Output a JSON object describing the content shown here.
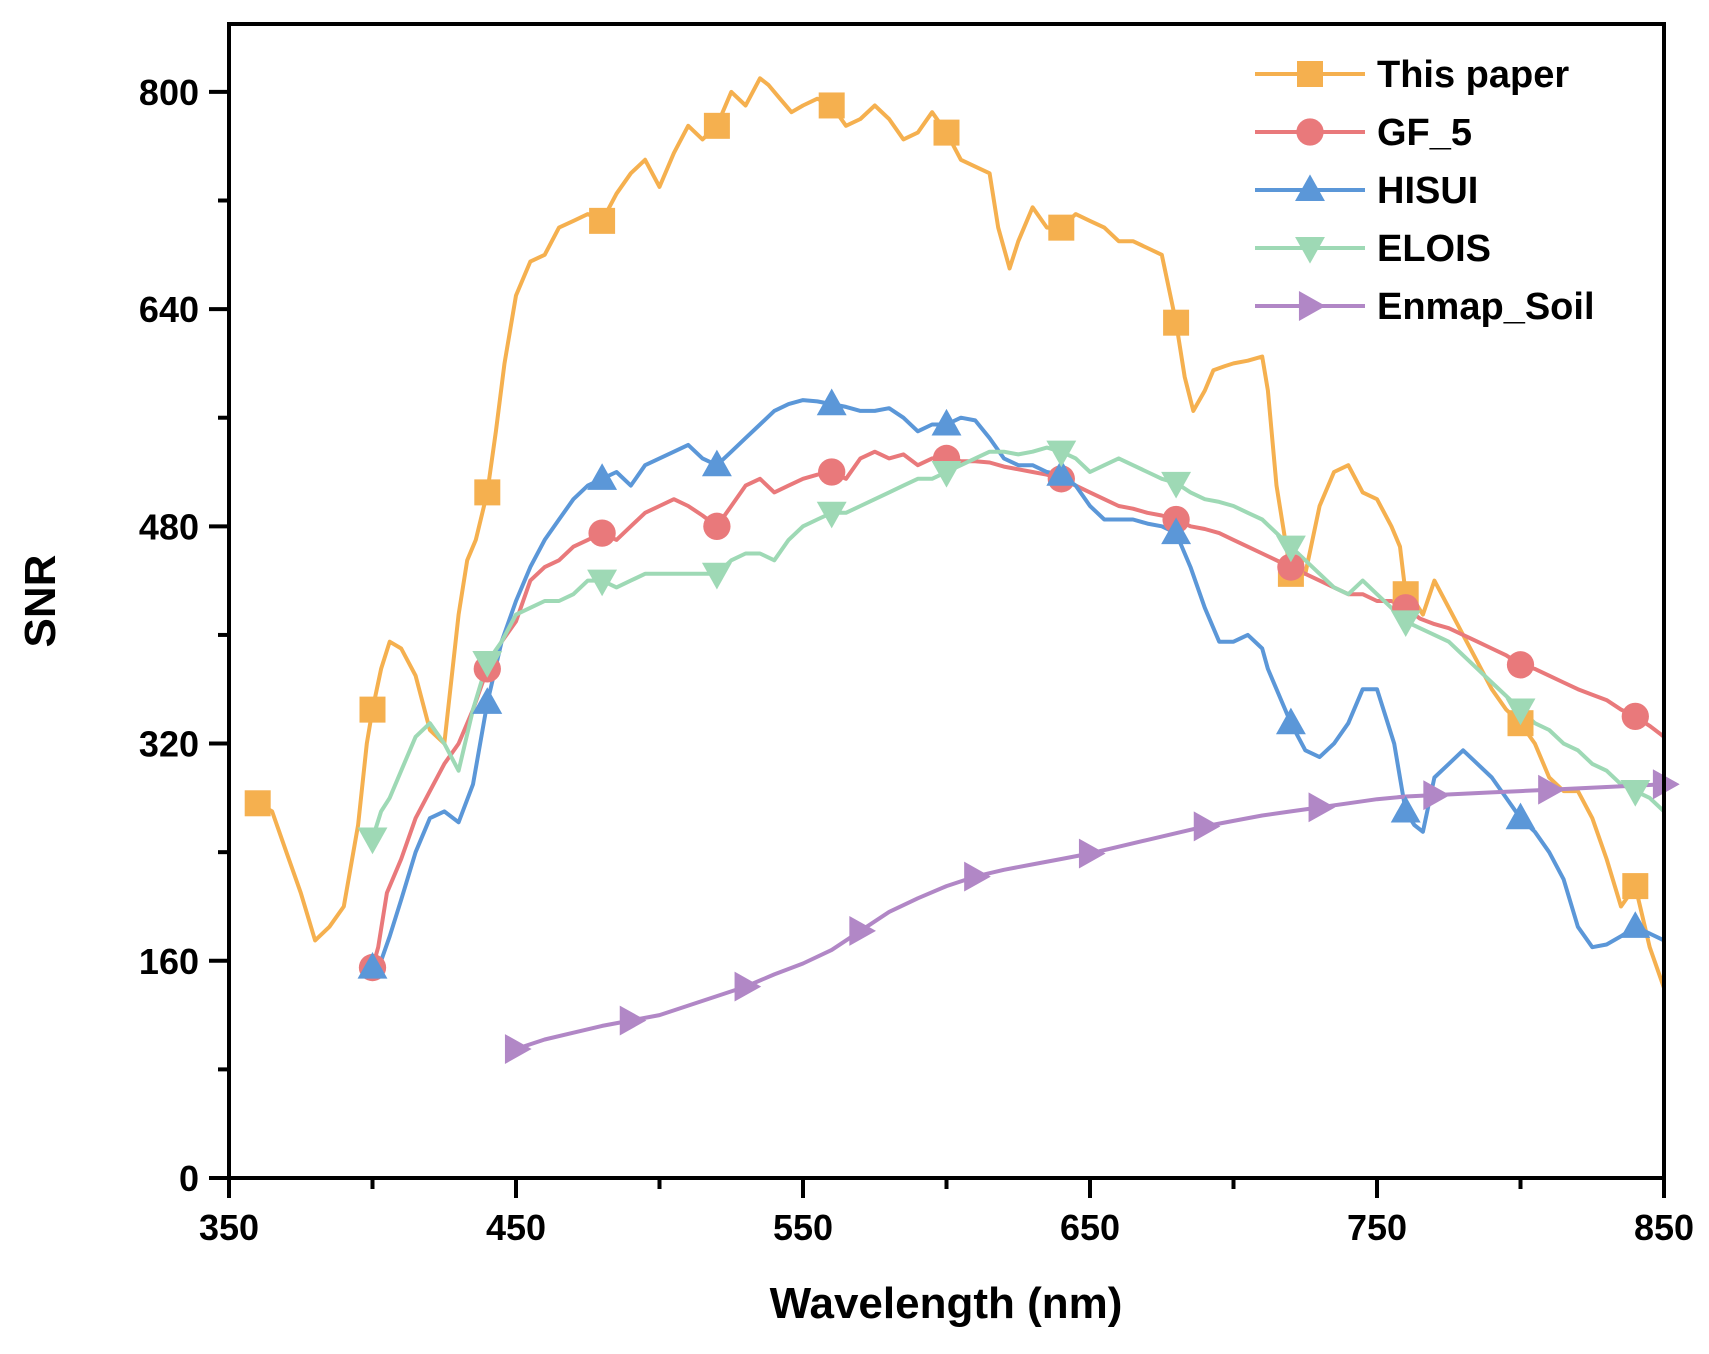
{
  "chart_data": {
    "type": "line",
    "title": "",
    "xlabel": "Wavelength (nm)",
    "ylabel": "SNR",
    "xlim": [
      350,
      850
    ],
    "ylim": [
      0,
      850
    ],
    "xticks": [
      350,
      450,
      550,
      650,
      750,
      850
    ],
    "xticks_minor": [
      400,
      500,
      600,
      700,
      800
    ],
    "yticks": [
      0,
      160,
      320,
      480,
      640,
      800
    ],
    "grid": false,
    "legend_position": "top-right",
    "series": [
      {
        "name": "This paper",
        "color": "#f5b04f",
        "marker": "square",
        "x": [
          360,
          365,
          370,
          375,
          380,
          385,
          390,
          395,
          398,
          400,
          403,
          406,
          410,
          415,
          420,
          425,
          430,
          433,
          436,
          440,
          443,
          446,
          450,
          455,
          460,
          465,
          470,
          475,
          480,
          485,
          490,
          495,
          500,
          505,
          510,
          515,
          520,
          525,
          530,
          535,
          538,
          542,
          546,
          550,
          555,
          560,
          565,
          570,
          575,
          580,
          585,
          590,
          595,
          600,
          605,
          610,
          615,
          618,
          622,
          625,
          630,
          635,
          640,
          645,
          650,
          655,
          660,
          665,
          670,
          675,
          680,
          683,
          686,
          690,
          693,
          697,
          700,
          705,
          710,
          712,
          715,
          718,
          720,
          725,
          730,
          735,
          740,
          745,
          750,
          755,
          758,
          760,
          763,
          766,
          770,
          775,
          780,
          785,
          790,
          795,
          800,
          805,
          810,
          815,
          820,
          825,
          830,
          835,
          840,
          845,
          850
        ],
        "y": [
          276,
          270,
          240,
          210,
          175,
          185,
          200,
          260,
          320,
          345,
          375,
          395,
          390,
          370,
          330,
          320,
          415,
          455,
          470,
          505,
          550,
          600,
          650,
          675,
          680,
          700,
          705,
          710,
          705,
          725,
          740,
          750,
          730,
          755,
          775,
          765,
          775,
          800,
          790,
          810,
          805,
          795,
          785,
          790,
          795,
          790,
          775,
          780,
          790,
          780,
          765,
          770,
          785,
          770,
          750,
          745,
          740,
          700,
          670,
          690,
          715,
          700,
          700,
          710,
          705,
          700,
          690,
          690,
          685,
          680,
          630,
          590,
          565,
          580,
          595,
          598,
          600,
          602,
          605,
          580,
          510,
          470,
          445,
          445,
          495,
          520,
          525,
          505,
          500,
          480,
          465,
          430,
          425,
          415,
          440,
          420,
          400,
          380,
          360,
          345,
          335,
          320,
          295,
          285,
          285,
          265,
          235,
          200,
          215,
          170,
          140
        ]
      },
      {
        "name": "GF_5",
        "color": "#e9797b",
        "marker": "circle",
        "x": [
          400,
          402,
          405,
          410,
          415,
          420,
          425,
          430,
          435,
          440,
          445,
          450,
          455,
          460,
          465,
          470,
          475,
          480,
          485,
          490,
          495,
          500,
          505,
          510,
          515,
          520,
          525,
          530,
          535,
          540,
          545,
          550,
          555,
          560,
          565,
          570,
          575,
          580,
          585,
          590,
          595,
          600,
          605,
          610,
          615,
          620,
          625,
          630,
          635,
          640,
          645,
          650,
          655,
          660,
          665,
          670,
          675,
          680,
          685,
          690,
          695,
          700,
          705,
          710,
          715,
          720,
          725,
          730,
          735,
          740,
          745,
          750,
          755,
          760,
          765,
          770,
          775,
          780,
          785,
          790,
          795,
          800,
          805,
          810,
          815,
          820,
          825,
          830,
          835,
          840,
          845,
          850
        ],
        "y": [
          155,
          170,
          210,
          235,
          265,
          285,
          305,
          320,
          345,
          375,
          395,
          410,
          440,
          450,
          455,
          465,
          470,
          475,
          470,
          480,
          490,
          495,
          500,
          495,
          488,
          480,
          495,
          510,
          515,
          505,
          510,
          515,
          518,
          520,
          515,
          530,
          535,
          530,
          533,
          525,
          530,
          530,
          528,
          528,
          527,
          524,
          522,
          520,
          518,
          515,
          510,
          505,
          500,
          495,
          493,
          490,
          488,
          485,
          480,
          478,
          475,
          470,
          465,
          460,
          455,
          450,
          445,
          440,
          435,
          430,
          430,
          425,
          425,
          420,
          412,
          408,
          405,
          400,
          395,
          390,
          385,
          378,
          375,
          370,
          365,
          360,
          356,
          352,
          345,
          340,
          333,
          325
        ]
      },
      {
        "name": "HISUI",
        "color": "#5b97d8",
        "marker": "triangle-up",
        "x": [
          400,
          403,
          406,
          410,
          415,
          420,
          425,
          430,
          435,
          440,
          445,
          450,
          455,
          460,
          465,
          470,
          475,
          480,
          485,
          490,
          495,
          500,
          505,
          510,
          515,
          520,
          525,
          530,
          535,
          540,
          545,
          550,
          555,
          560,
          565,
          570,
          575,
          580,
          585,
          590,
          595,
          600,
          605,
          610,
          615,
          620,
          625,
          630,
          635,
          640,
          645,
          650,
          655,
          660,
          665,
          670,
          675,
          680,
          685,
          690,
          695,
          700,
          705,
          710,
          712,
          715,
          718,
          720,
          725,
          730,
          735,
          740,
          745,
          750,
          753,
          756,
          760,
          763,
          766,
          770,
          775,
          780,
          785,
          790,
          795,
          800,
          805,
          810,
          815,
          820,
          825,
          830,
          835,
          840,
          845,
          850
        ],
        "y": [
          155,
          160,
          178,
          205,
          240,
          265,
          270,
          262,
          290,
          350,
          395,
          425,
          450,
          470,
          485,
          500,
          510,
          515,
          520,
          510,
          525,
          530,
          535,
          540,
          530,
          525,
          535,
          545,
          555,
          565,
          570,
          573,
          572,
          570,
          568,
          565,
          565,
          567,
          560,
          550,
          555,
          555,
          560,
          558,
          545,
          530,
          525,
          525,
          520,
          518,
          510,
          495,
          485,
          485,
          485,
          482,
          480,
          475,
          450,
          420,
          395,
          395,
          400,
          390,
          375,
          360,
          345,
          335,
          315,
          310,
          320,
          335,
          360,
          360,
          340,
          320,
          270,
          260,
          255,
          295,
          305,
          315,
          305,
          295,
          280,
          265,
          255,
          240,
          220,
          185,
          170,
          172,
          178,
          185,
          180,
          175
        ]
      },
      {
        "name": "ELOIS",
        "color": "#9ed9b5",
        "marker": "triangle-down",
        "x": [
          400,
          403,
          406,
          410,
          415,
          420,
          425,
          430,
          435,
          440,
          445,
          450,
          455,
          460,
          465,
          470,
          475,
          480,
          485,
          490,
          495,
          500,
          505,
          510,
          515,
          520,
          525,
          530,
          535,
          540,
          545,
          550,
          555,
          560,
          565,
          570,
          575,
          580,
          585,
          590,
          595,
          600,
          605,
          610,
          615,
          620,
          625,
          630,
          635,
          640,
          645,
          650,
          655,
          660,
          665,
          670,
          675,
          680,
          685,
          690,
          695,
          700,
          705,
          710,
          715,
          720,
          725,
          730,
          735,
          740,
          745,
          750,
          755,
          760,
          765,
          770,
          775,
          780,
          785,
          790,
          795,
          800,
          805,
          810,
          815,
          820,
          825,
          830,
          835,
          840,
          845,
          850
        ],
        "y": [
          250,
          270,
          280,
          300,
          325,
          335,
          320,
          300,
          345,
          380,
          395,
          415,
          420,
          425,
          425,
          430,
          440,
          440,
          435,
          440,
          445,
          445,
          445,
          445,
          445,
          445,
          455,
          460,
          460,
          455,
          470,
          480,
          485,
          490,
          490,
          495,
          500,
          505,
          510,
          515,
          515,
          520,
          525,
          530,
          535,
          535,
          533,
          535,
          538,
          535,
          530,
          520,
          525,
          530,
          525,
          520,
          515,
          512,
          505,
          500,
          498,
          495,
          490,
          485,
          475,
          465,
          455,
          445,
          435,
          430,
          440,
          430,
          420,
          410,
          405,
          400,
          395,
          385,
          375,
          365,
          355,
          345,
          335,
          330,
          320,
          315,
          305,
          300,
          290,
          285,
          280,
          270
        ]
      },
      {
        "name": "Enmap_Soil",
        "color": "#b187c6",
        "marker": "triangle-right",
        "x": [
          450,
          460,
          470,
          480,
          490,
          500,
          510,
          520,
          530,
          540,
          550,
          560,
          570,
          580,
          590,
          600,
          610,
          620,
          630,
          640,
          650,
          660,
          670,
          680,
          690,
          700,
          710,
          720,
          730,
          740,
          750,
          760,
          770,
          780,
          790,
          800,
          810,
          820,
          830,
          840,
          850
        ],
        "y": [
          95,
          102,
          107,
          112,
          116,
          120,
          127,
          134,
          141,
          150,
          158,
          168,
          182,
          196,
          206,
          215,
          222,
          227,
          231,
          235,
          239,
          244,
          249,
          254,
          259,
          263,
          267,
          270,
          273,
          276,
          279,
          281,
          282,
          283,
          284,
          285,
          286,
          287,
          288,
          289,
          290
        ]
      }
    ]
  }
}
